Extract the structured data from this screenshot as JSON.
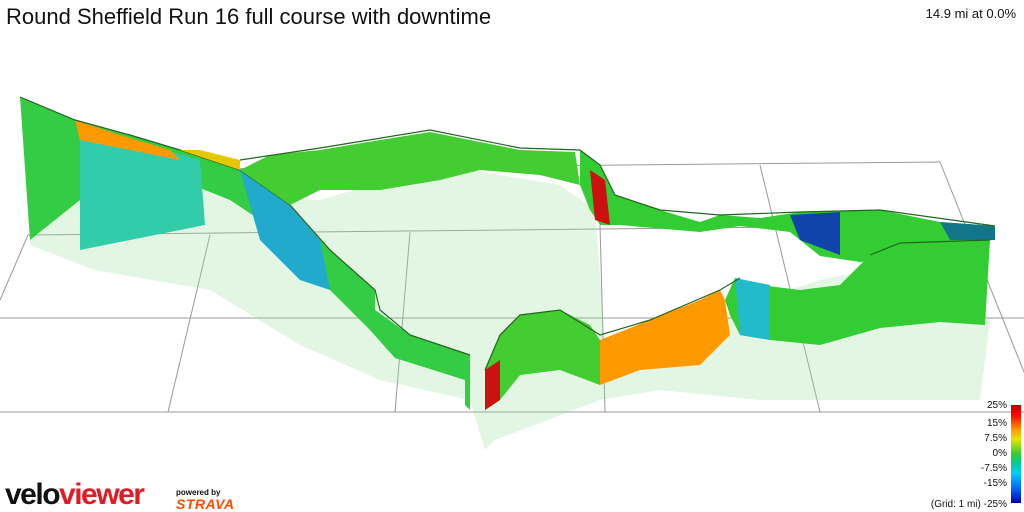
{
  "title": "Round Sheffield Run 16 full course with downtime",
  "status": "14.9 mi at 0.0%",
  "legend": {
    "labels": [
      "25%",
      "15%",
      "7.5%",
      "0%",
      "-7.5%",
      "-15%",
      "-25%"
    ],
    "grid_note": "(Grid: 1 mi)"
  },
  "logo": {
    "part1": "velo",
    "part2": "viewer"
  },
  "powered_by": "powered by",
  "strava": "STRAVA",
  "colors": {
    "grid": "#888888",
    "wall_green": "#33cc33",
    "wall_cyan": "#33cccc",
    "wall_red": "#cc1111",
    "wall_orange": "#ff9900",
    "wall_blue": "#0044cc",
    "strava": "#fc4c02",
    "logo_red": "#e01b24"
  }
}
